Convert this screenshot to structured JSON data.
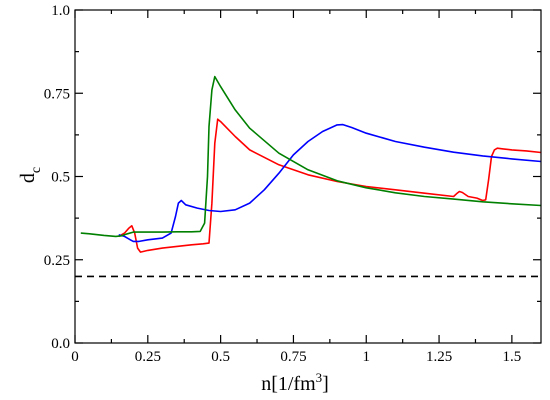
{
  "chart_data": {
    "type": "line",
    "xlabel": "n[1/fm",
    "xlabel_sup": "3",
    "xlabel_tail": "]",
    "ylabel": "d",
    "ylabel_sub": "c",
    "xlim": [
      0,
      1.6
    ],
    "ylim": [
      0,
      1.0
    ],
    "xticks": [
      0,
      0.25,
      0.5,
      0.75,
      1.0,
      1.25,
      1.5
    ],
    "xtick_labels": [
      "0",
      "0.25",
      "0.5",
      "0.75",
      "1",
      "1.25",
      "1.5"
    ],
    "yticks": [
      0,
      0.25,
      0.5,
      0.75,
      1.0
    ],
    "ytick_labels": [
      "0.0",
      "0.25",
      "0.5",
      "0.75",
      "1.0"
    ],
    "grid": false,
    "reference_lines": [
      {
        "y": 0.2,
        "style": "dashed",
        "color": "#000000"
      }
    ],
    "series": [
      {
        "color": "#ff0000",
        "x": [
          0.15,
          0.17,
          0.185,
          0.195,
          0.205,
          0.215,
          0.225,
          0.25,
          0.3,
          0.35,
          0.4,
          0.44,
          0.46,
          0.47,
          0.48,
          0.49,
          0.5,
          0.55,
          0.6,
          0.7,
          0.8,
          0.9,
          1.0,
          1.1,
          1.2,
          1.3,
          1.31,
          1.32,
          1.33,
          1.35,
          1.38,
          1.4,
          1.41,
          1.42,
          1.43,
          1.44,
          1.45,
          1.47,
          1.5,
          1.55,
          1.6
        ],
        "y": [
          0.32,
          0.33,
          0.345,
          0.352,
          0.33,
          0.285,
          0.273,
          0.278,
          0.285,
          0.29,
          0.295,
          0.298,
          0.3,
          0.42,
          0.6,
          0.672,
          0.665,
          0.62,
          0.58,
          0.535,
          0.505,
          0.485,
          0.47,
          0.46,
          0.45,
          0.44,
          0.448,
          0.455,
          0.452,
          0.44,
          0.435,
          0.428,
          0.43,
          0.49,
          0.56,
          0.58,
          0.585,
          0.583,
          0.58,
          0.577,
          0.572
        ]
      },
      {
        "color": "#0000ff",
        "x": [
          0.15,
          0.17,
          0.19,
          0.2,
          0.22,
          0.25,
          0.3,
          0.33,
          0.345,
          0.355,
          0.365,
          0.38,
          0.42,
          0.46,
          0.5,
          0.55,
          0.6,
          0.65,
          0.7,
          0.75,
          0.8,
          0.85,
          0.9,
          0.92,
          0.95,
          1.0,
          1.1,
          1.2,
          1.3,
          1.4,
          1.5,
          1.6
        ],
        "y": [
          0.325,
          0.32,
          0.31,
          0.305,
          0.305,
          0.31,
          0.315,
          0.33,
          0.38,
          0.42,
          0.428,
          0.415,
          0.405,
          0.398,
          0.395,
          0.4,
          0.42,
          0.46,
          0.51,
          0.565,
          0.605,
          0.635,
          0.655,
          0.656,
          0.647,
          0.63,
          0.605,
          0.588,
          0.573,
          0.562,
          0.553,
          0.545
        ]
      },
      {
        "color": "#008000",
        "x": [
          0.02,
          0.05,
          0.1,
          0.14,
          0.16,
          0.18,
          0.2,
          0.25,
          0.3,
          0.35,
          0.4,
          0.43,
          0.445,
          0.455,
          0.46,
          0.47,
          0.48,
          0.5,
          0.55,
          0.6,
          0.7,
          0.8,
          0.9,
          1.0,
          1.1,
          1.2,
          1.3,
          1.4,
          1.5,
          1.6
        ],
        "y": [
          0.33,
          0.328,
          0.323,
          0.32,
          0.322,
          0.328,
          0.333,
          0.333,
          0.333,
          0.334,
          0.334,
          0.335,
          0.36,
          0.5,
          0.65,
          0.76,
          0.8,
          0.77,
          0.7,
          0.645,
          0.57,
          0.52,
          0.487,
          0.466,
          0.451,
          0.44,
          0.432,
          0.424,
          0.418,
          0.413
        ]
      }
    ]
  }
}
